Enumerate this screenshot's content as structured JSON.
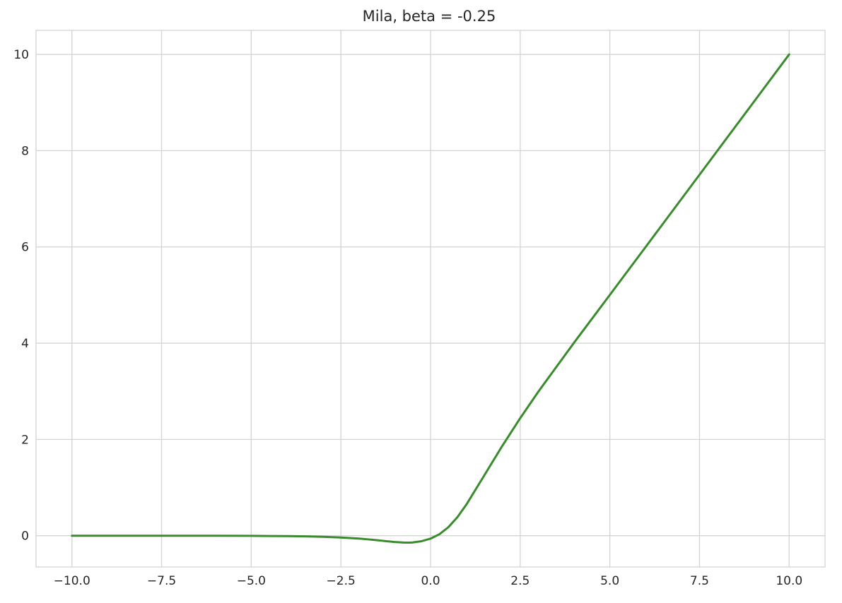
{
  "chart_data": {
    "type": "line",
    "title": "Mila, beta = -0.25",
    "xlabel": "",
    "ylabel": "",
    "xlim": [
      -11,
      11
    ],
    "ylim": [
      -0.65,
      10.5
    ],
    "grid": true,
    "legend": "none",
    "x_ticks": [
      -10.0,
      -7.5,
      -5.0,
      -2.5,
      0.0,
      2.5,
      5.0,
      7.5,
      10.0
    ],
    "x_tick_labels": [
      "−10.0",
      "−7.5",
      "−5.0",
      "−2.5",
      "0.0",
      "2.5",
      "5.0",
      "7.5",
      "10.0"
    ],
    "y_ticks": [
      0,
      2,
      4,
      6,
      8,
      10
    ],
    "y_tick_labels": [
      "0",
      "2",
      "4",
      "6",
      "8",
      "10"
    ],
    "series": [
      {
        "color": "#3a8b2d",
        "x": [
          -10,
          -8,
          -6,
          -5,
          -4,
          -3.5,
          -3,
          -2.5,
          -2,
          -1.75,
          -1.5,
          -1.25,
          -1,
          -0.75,
          -0.6,
          -0.5,
          -0.25,
          0,
          0.25,
          0.5,
          0.75,
          1,
          1.5,
          2,
          2.5,
          3,
          4,
          5,
          6,
          7,
          8,
          9,
          10
        ],
        "y": [
          0.0,
          0.0,
          -0.001,
          -0.003,
          -0.008,
          -0.014,
          -0.023,
          -0.037,
          -0.059,
          -0.075,
          -0.093,
          -0.113,
          -0.131,
          -0.142,
          -0.143,
          -0.14,
          -0.114,
          -0.061,
          0.031,
          0.179,
          0.387,
          0.648,
          1.255,
          1.866,
          2.442,
          2.987,
          4.009,
          5.004,
          6.002,
          7.001,
          8.0,
          9.0,
          10.0
        ]
      }
    ]
  }
}
